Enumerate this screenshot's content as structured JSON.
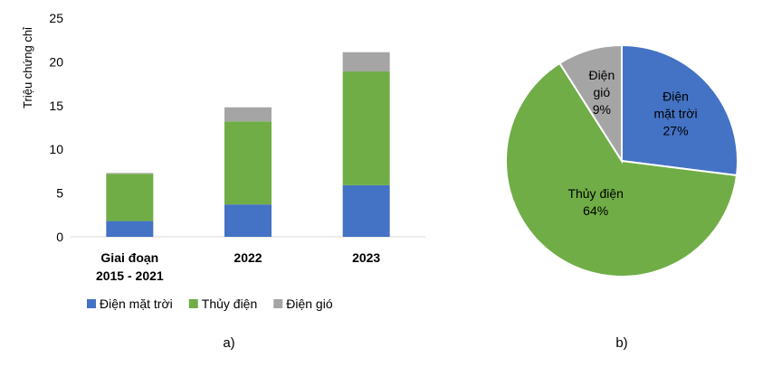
{
  "colors": {
    "solar": "#4472C4",
    "hydro": "#70AD47",
    "wind": "#A5A5A5",
    "axis": "#D9D9D9",
    "text": "#000000"
  },
  "panel_labels": {
    "a": "a)",
    "b": "b)"
  },
  "chart_data": [
    {
      "type": "bar",
      "stacked": true,
      "title": "",
      "xlabel": "",
      "ylabel": "Triệu chứng chỉ",
      "ylim": [
        0,
        25
      ],
      "yticks": [
        0,
        5,
        10,
        15,
        20,
        25
      ],
      "grid": false,
      "legend": "bottom",
      "categories": [
        [
          "Giai đoạn",
          "2015 - 2021"
        ],
        [
          "2022"
        ],
        [
          "2023"
        ]
      ],
      "series": [
        {
          "name": "Điện mặt trời",
          "color": "#4472C4",
          "values": [
            1.8,
            3.7,
            5.9
          ]
        },
        {
          "name": "Thủy điện",
          "color": "#70AD47",
          "values": [
            5.4,
            9.5,
            13.0
          ]
        },
        {
          "name": "Điện gió",
          "color": "#A5A5A5",
          "values": [
            0.1,
            1.6,
            2.2
          ]
        }
      ]
    },
    {
      "type": "pie",
      "title": "",
      "slices": [
        {
          "name": "Điện mặt trời",
          "label_lines": [
            "Điện",
            "mặt trời",
            "27%"
          ],
          "value": 27,
          "color": "#4472C4"
        },
        {
          "name": "Thủy điện",
          "label_lines": [
            "Thủy điện",
            "64%"
          ],
          "value": 64,
          "color": "#70AD47"
        },
        {
          "name": "Điện gió",
          "label_lines": [
            "Điện",
            "gió",
            "9%"
          ],
          "value": 9,
          "color": "#A5A5A5"
        }
      ]
    }
  ]
}
